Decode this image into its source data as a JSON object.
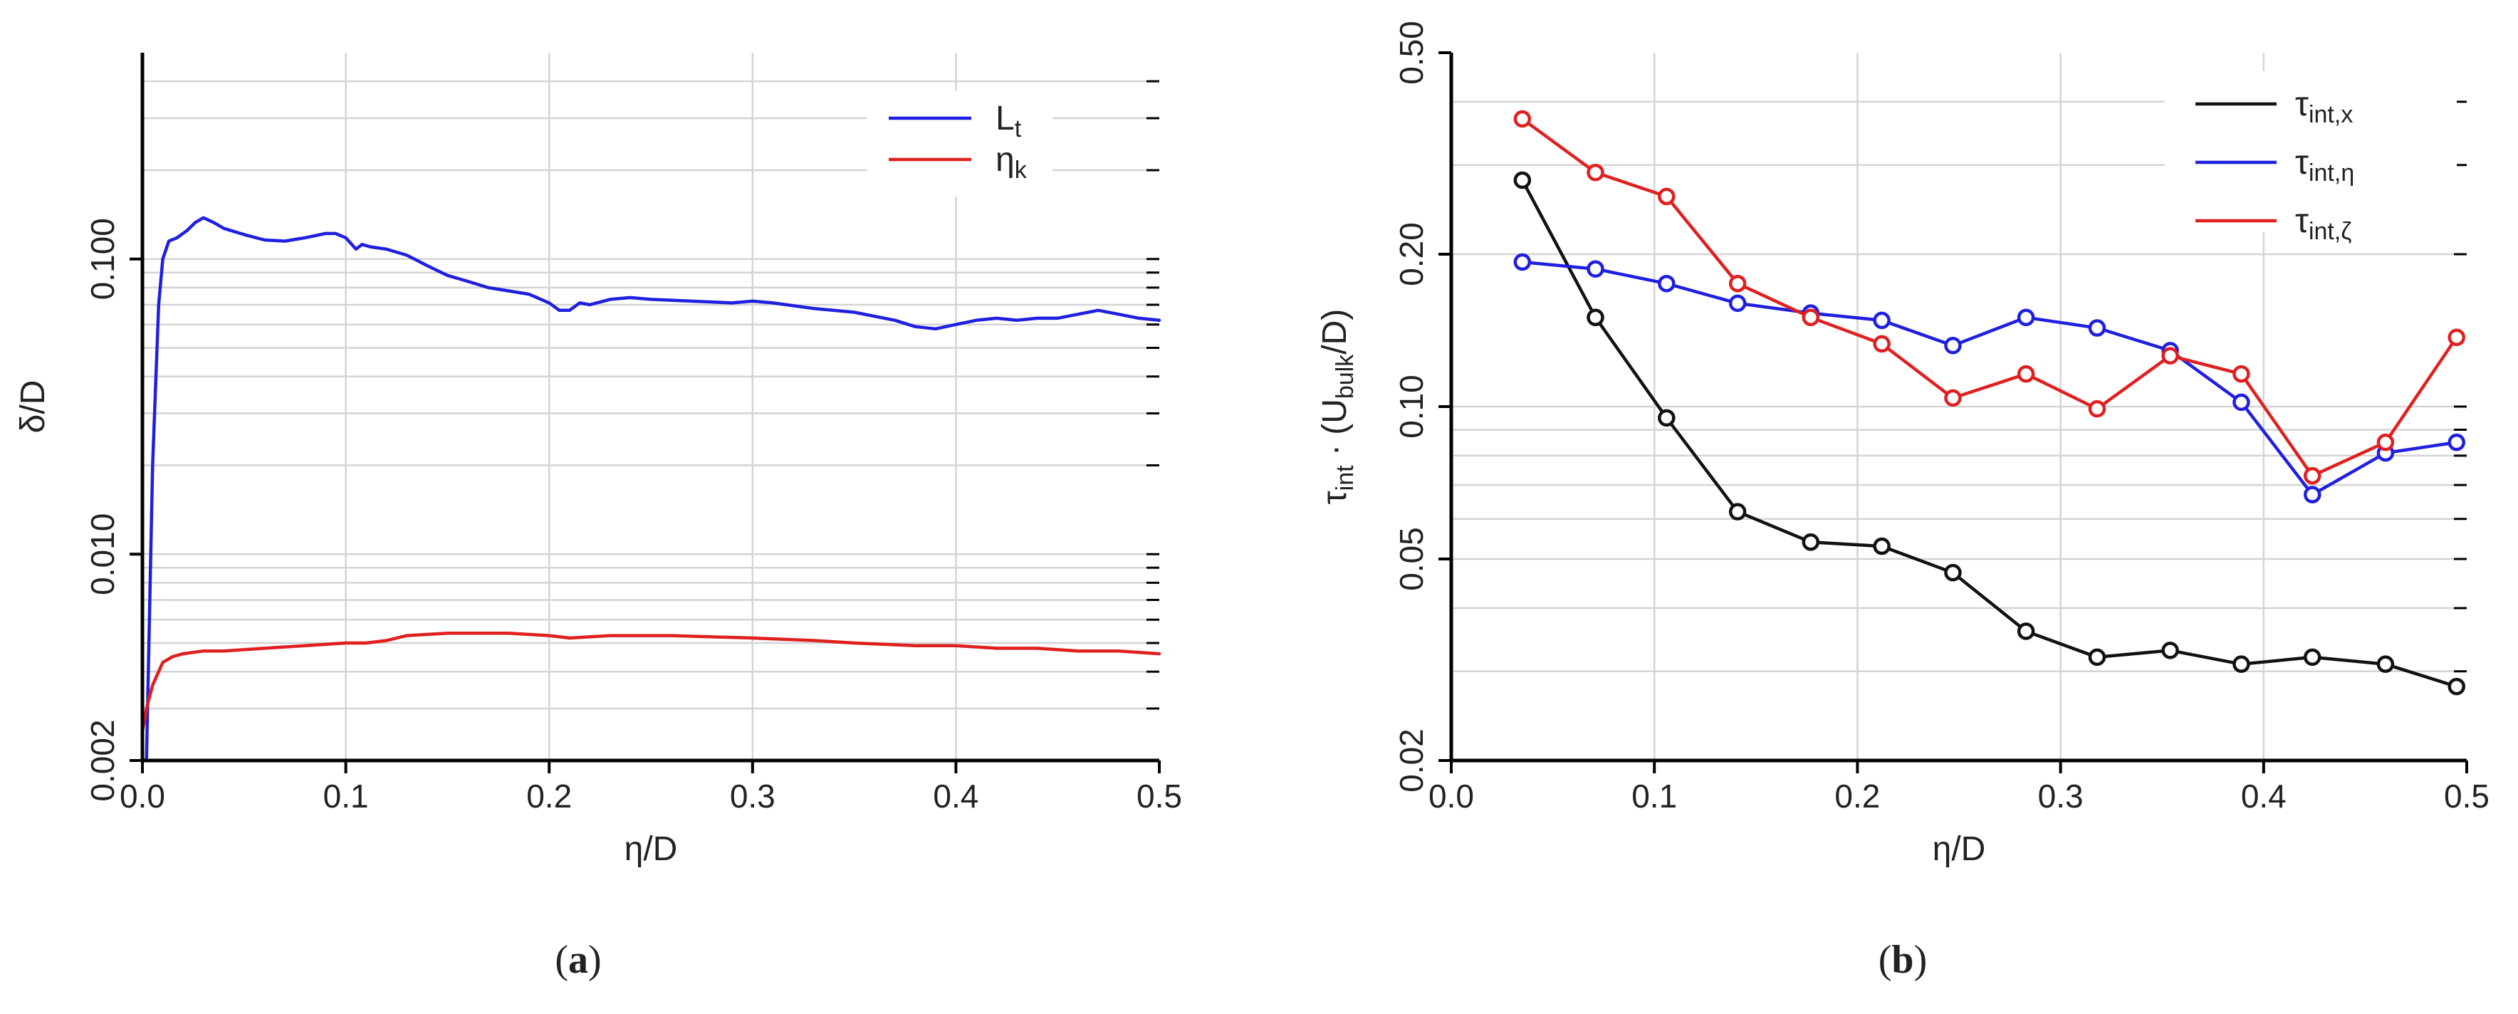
{
  "chart_data": [
    {
      "type": "line",
      "panel_label": "a",
      "title": "",
      "xlabel": "η/D",
      "ylabel": "δ/D",
      "yscale": "log",
      "xlim": [
        0.0,
        0.5
      ],
      "ylim": [
        0.002,
        0.5
      ],
      "xticks": [
        0.0,
        0.1,
        0.2,
        0.3,
        0.4,
        0.5
      ],
      "xtick_labels": [
        "0.0",
        "0.1",
        "0.2",
        "0.3",
        "0.4",
        "0.5"
      ],
      "yticks": [
        0.002,
        0.01,
        0.1
      ],
      "ytick_labels": [
        "0.002",
        "0.010",
        "0.100"
      ],
      "grid": true,
      "legend_position": "top-right",
      "series": [
        {
          "name": "L",
          "name_sub": "t",
          "color": "#1f1fe0",
          "x": [
            0.002,
            0.005,
            0.008,
            0.01,
            0.013,
            0.017,
            0.022,
            0.026,
            0.03,
            0.035,
            0.04,
            0.05,
            0.06,
            0.07,
            0.08,
            0.09,
            0.095,
            0.1,
            0.105,
            0.108,
            0.112,
            0.12,
            0.13,
            0.14,
            0.15,
            0.16,
            0.17,
            0.18,
            0.19,
            0.2,
            0.205,
            0.21,
            0.215,
            0.22,
            0.23,
            0.24,
            0.25,
            0.27,
            0.29,
            0.3,
            0.31,
            0.33,
            0.35,
            0.37,
            0.38,
            0.39,
            0.4,
            0.41,
            0.42,
            0.43,
            0.44,
            0.45,
            0.46,
            0.47,
            0.48,
            0.49,
            0.5
          ],
          "values": [
            0.002,
            0.02,
            0.07,
            0.1,
            0.115,
            0.118,
            0.125,
            0.133,
            0.138,
            0.133,
            0.127,
            0.121,
            0.116,
            0.115,
            0.118,
            0.122,
            0.122,
            0.118,
            0.108,
            0.112,
            0.11,
            0.108,
            0.103,
            0.095,
            0.088,
            0.084,
            0.08,
            0.078,
            0.076,
            0.071,
            0.067,
            0.067,
            0.071,
            0.07,
            0.073,
            0.074,
            0.073,
            0.072,
            0.071,
            0.072,
            0.071,
            0.068,
            0.066,
            0.062,
            0.059,
            0.058,
            0.06,
            0.062,
            0.063,
            0.062,
            0.063,
            0.063,
            0.065,
            0.067,
            0.065,
            0.063,
            0.062
          ]
        },
        {
          "name": "η",
          "name_sub": "k",
          "color": "#e01f1f",
          "x": [
            0.0,
            0.002,
            0.005,
            0.008,
            0.01,
            0.015,
            0.02,
            0.03,
            0.04,
            0.06,
            0.08,
            0.1,
            0.11,
            0.12,
            0.13,
            0.15,
            0.18,
            0.2,
            0.21,
            0.23,
            0.26,
            0.3,
            0.33,
            0.35,
            0.38,
            0.4,
            0.42,
            0.44,
            0.46,
            0.48,
            0.5
          ],
          "values": [
            0.0025,
            0.003,
            0.0036,
            0.004,
            0.0043,
            0.0045,
            0.0046,
            0.0047,
            0.0047,
            0.0048,
            0.0049,
            0.005,
            0.005,
            0.0051,
            0.0053,
            0.0054,
            0.0054,
            0.0053,
            0.0052,
            0.0053,
            0.0053,
            0.0052,
            0.0051,
            0.005,
            0.0049,
            0.0049,
            0.0048,
            0.0048,
            0.0047,
            0.0047,
            0.0046
          ]
        }
      ]
    },
    {
      "type": "line",
      "panel_label": "b",
      "title": "",
      "xlabel": "η/D",
      "ylabel_pre": "τ",
      "ylabel_sub": "int",
      "ylabel_mid": " · (U",
      "ylabel_sub2": "bulk",
      "ylabel_post": "/D)",
      "yscale": "log",
      "xlim": [
        0.0,
        0.5
      ],
      "ylim": [
        0.02,
        0.5
      ],
      "xticks": [
        0.0,
        0.1,
        0.2,
        0.3,
        0.4,
        0.5
      ],
      "xtick_labels": [
        "0.0",
        "0.1",
        "0.2",
        "0.3",
        "0.4",
        "0.5"
      ],
      "yticks": [
        0.02,
        0.05,
        0.1,
        0.2,
        0.5
      ],
      "ytick_labels": [
        "0.02",
        "0.05",
        "0.10",
        "0.20",
        "0.50"
      ],
      "grid": true,
      "legend_position": "top-right",
      "markers": "open-circle",
      "series": [
        {
          "name": "τ",
          "name_sub": "int,x",
          "color": "#111111",
          "x": [
            0.035,
            0.071,
            0.106,
            0.141,
            0.177,
            0.212,
            0.247,
            0.283,
            0.318,
            0.354,
            0.389,
            0.424,
            0.46,
            0.495
          ],
          "values": [
            0.28,
            0.15,
            0.095,
            0.062,
            0.054,
            0.053,
            0.047,
            0.036,
            0.032,
            0.033,
            0.031,
            0.032,
            0.031,
            0.028
          ]
        },
        {
          "name": "τ",
          "name_sub": "int,η",
          "color": "#1f1fe0",
          "x": [
            0.035,
            0.071,
            0.106,
            0.141,
            0.177,
            0.212,
            0.247,
            0.283,
            0.318,
            0.354,
            0.389,
            0.424,
            0.46,
            0.495
          ],
          "values": [
            0.193,
            0.187,
            0.175,
            0.16,
            0.153,
            0.148,
            0.132,
            0.15,
            0.143,
            0.129,
            0.102,
            0.067,
            0.081,
            0.085
          ]
        },
        {
          "name": "τ",
          "name_sub": "int,ζ",
          "color": "#e01f1f",
          "x": [
            0.035,
            0.071,
            0.106,
            0.141,
            0.177,
            0.212,
            0.247,
            0.283,
            0.318,
            0.354,
            0.389,
            0.424,
            0.46,
            0.495
          ],
          "values": [
            0.37,
            0.29,
            0.26,
            0.175,
            0.15,
            0.133,
            0.104,
            0.116,
            0.099,
            0.126,
            0.116,
            0.073,
            0.085,
            0.137
          ]
        }
      ]
    }
  ]
}
